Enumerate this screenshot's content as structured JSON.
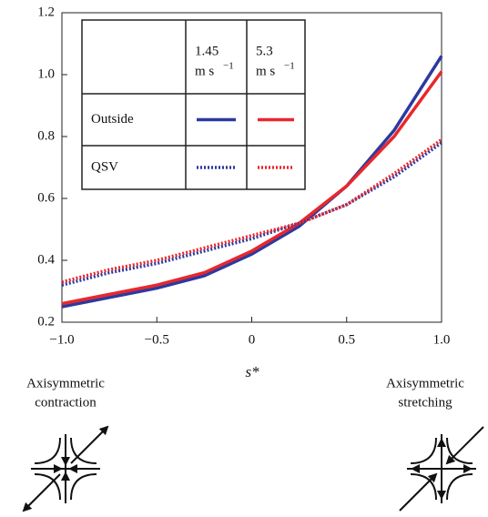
{
  "chart_data": {
    "type": "line",
    "x": [
      -1,
      -0.75,
      -0.5,
      -0.25,
      0,
      0.25,
      0.5,
      0.75,
      1
    ],
    "series": [
      {
        "color": "#2b3a9e",
        "style": "solid",
        "values": [
          0.25,
          0.28,
          0.31,
          0.35,
          0.42,
          0.51,
          0.64,
          0.82,
          1.06
        ]
      },
      {
        "color": "#e8272d",
        "style": "solid",
        "values": [
          0.26,
          0.29,
          0.32,
          0.36,
          0.43,
          0.52,
          0.64,
          0.8,
          1.01
        ]
      },
      {
        "color": "#2b3a9e",
        "style": "dotted",
        "values": [
          0.32,
          0.36,
          0.39,
          0.43,
          0.47,
          0.52,
          0.58,
          0.67,
          0.78
        ]
      },
      {
        "color": "#e8272d",
        "style": "dotted",
        "values": [
          0.33,
          0.37,
          0.4,
          0.44,
          0.48,
          0.52,
          0.58,
          0.68,
          0.79
        ]
      }
    ],
    "xlim": [
      -1,
      1
    ],
    "xticks": [
      {
        "value": -1,
        "label": "−1.0"
      },
      {
        "value": -0.5,
        "label": "−0.5"
      },
      0,
      0.5,
      {
        "value": 1,
        "label": "1.0"
      }
    ],
    "ylim": [
      0.2,
      1.2
    ],
    "yticks": [
      0.2,
      0.4,
      0.6,
      0.8,
      {
        "value": 1,
        "label": "1.0"
      },
      1.2
    ],
    "x_label": "s*",
    "legend_table": {
      "columns": [
        {
          "speed": "1.45",
          "unit": "m s",
          "exponent": "−1"
        },
        {
          "speed": "5.3",
          "unit": "m s",
          "exponent": "−1"
        }
      ],
      "rows": [
        "Outside",
        "QSV"
      ]
    },
    "annotations": {
      "left": [
        "Axisymmetric",
        "contraction"
      ],
      "right": [
        "Axisymmetric",
        "stretching"
      ]
    }
  }
}
